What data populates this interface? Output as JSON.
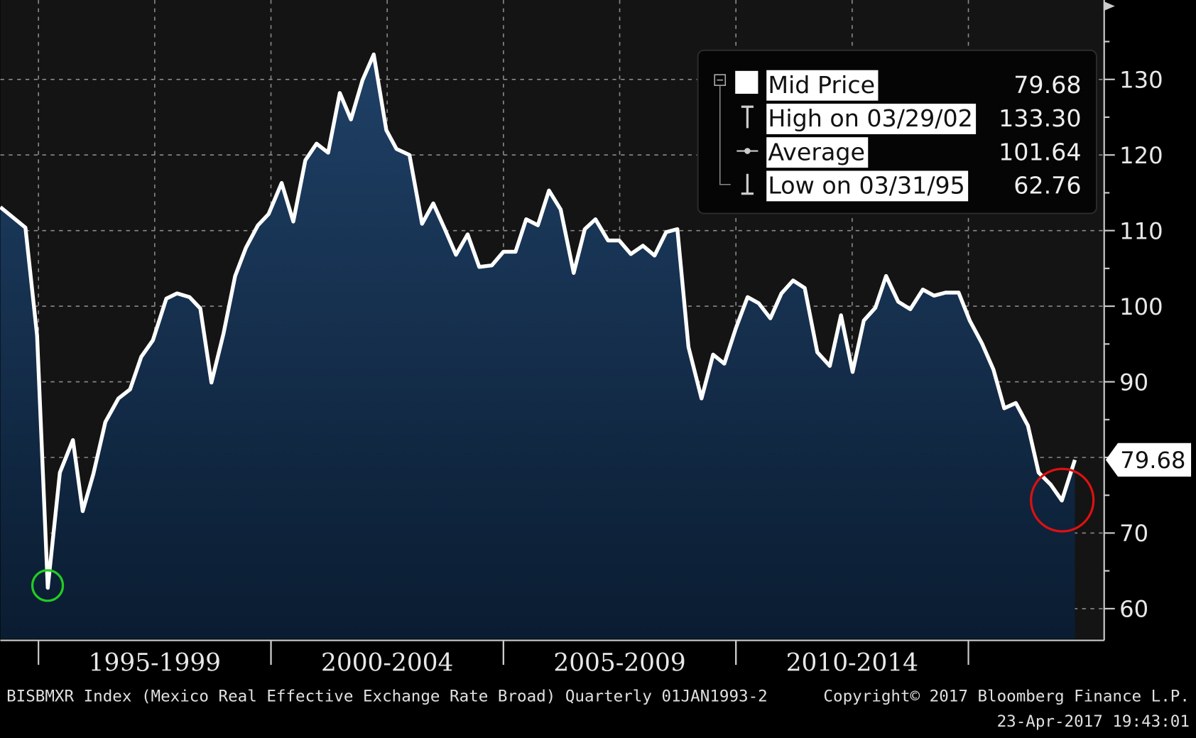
{
  "chart_data": {
    "type": "area",
    "series": [
      {
        "name": "Mid Price",
        "color": "#ffffff",
        "x": [
          1994.18,
          1994.72,
          1994.97,
          1995.2,
          1995.46,
          1995.74,
          1995.95,
          1996.18,
          1996.44,
          1996.72,
          1996.97,
          1997.21,
          1997.46,
          1997.75,
          1997.98,
          1998.25,
          1998.48,
          1998.72,
          1998.98,
          1999.23,
          1999.46,
          1999.72,
          1999.95,
          2000.23,
          2000.48,
          2000.74,
          2000.98,
          2001.23,
          2001.48,
          2001.72,
          2001.97,
          2002.21,
          2002.48,
          2002.7,
          2002.98,
          2003.25,
          2003.49,
          2003.74,
          2003.98,
          2004.23,
          2004.48,
          2004.75,
          2005.0,
          2005.26,
          2005.49,
          2005.74,
          2005.98,
          2006.23,
          2006.51,
          2006.75,
          2006.98,
          2007.25,
          2007.49,
          2007.74,
          2008.0,
          2008.25,
          2008.5,
          2008.74,
          2008.98,
          2009.26,
          2009.51,
          2009.75,
          2010.0,
          2010.25,
          2010.49,
          2010.74,
          2010.98,
          2011.23,
          2011.48,
          2011.75,
          2012.02,
          2012.26,
          2012.51,
          2012.75,
          2013.0,
          2013.23,
          2013.49,
          2013.75,
          2014.02,
          2014.26,
          2014.51,
          2014.79,
          2015.03,
          2015.29,
          2015.54,
          2015.77,
          2016.02,
          2016.28,
          2016.51,
          2016.77,
          2017.01,
          2017.29
        ],
        "values": [
          113.1,
          110.4,
          96.1,
          62.76,
          78.0,
          82.3,
          72.9,
          77.8,
          84.7,
          87.8,
          89.0,
          93.3,
          95.5,
          101.0,
          101.7,
          101.2,
          99.7,
          89.9,
          96.4,
          104.0,
          107.7,
          110.7,
          112.2,
          116.3,
          111.2,
          119.3,
          121.5,
          120.3,
          128.2,
          124.7,
          129.9,
          133.3,
          123.3,
          120.8,
          120.0,
          110.9,
          113.6,
          110.2,
          106.8,
          109.5,
          105.2,
          105.4,
          107.2,
          107.2,
          111.5,
          110.7,
          115.3,
          112.8,
          104.4,
          110.2,
          111.5,
          108.7,
          108.7,
          106.9,
          108.0,
          106.7,
          109.8,
          110.2,
          94.6,
          87.8,
          93.6,
          92.4,
          97.1,
          101.2,
          100.4,
          98.4,
          101.7,
          103.4,
          102.4,
          93.9,
          92.1,
          98.8,
          91.3,
          98.1,
          99.8,
          104.0,
          100.6,
          99.6,
          102.2,
          101.4,
          101.8,
          101.8,
          98.1,
          95.1,
          91.6,
          86.5,
          87.2,
          84.2,
          78.0,
          76.4,
          74.3,
          79.68
        ]
      }
    ],
    "xlim": [
      1994.18,
      2017.92
    ],
    "xgrid": [
      1995,
      1997.5,
      2000,
      2002.5,
      2005,
      2007.5,
      2010,
      2012.5,
      2015
    ],
    "x_bands": [
      {
        "label": "1995-1999",
        "from": 1995,
        "to": 2000
      },
      {
        "label": "2000-2004",
        "from": 2000,
        "to": 2005
      },
      {
        "label": "2005-2009",
        "from": 2005,
        "to": 2010
      },
      {
        "label": "2010-2014",
        "from": 2010,
        "to": 2015
      }
    ],
    "ylim": [
      56,
      140.5
    ],
    "yticks": [
      60,
      70,
      80,
      90,
      100,
      110,
      120,
      130
    ],
    "y_minor_ticks": [
      65,
      75,
      85,
      95,
      105,
      115,
      125,
      135
    ],
    "grid": true,
    "last_value": 79.68,
    "legend": {
      "position": "upper right",
      "entries": [
        {
          "label": "Mid Price",
          "value": "79.68"
        },
        {
          "label": "High on 03/29/02",
          "value": "133.30"
        },
        {
          "label": "Average",
          "value": "101.64"
        },
        {
          "label": "Low on 03/31/95",
          "value": "62.76"
        }
      ]
    },
    "footer_left": "BISBMXR Index (Mexico Real Effective Exchange Rate Broad)  Quarterly 01JAN1993-2",
    "footer_right": "Copyright© 2017 Bloomberg Finance L.P.",
    "footer_date": "23-Apr-2017 19:43:01"
  }
}
